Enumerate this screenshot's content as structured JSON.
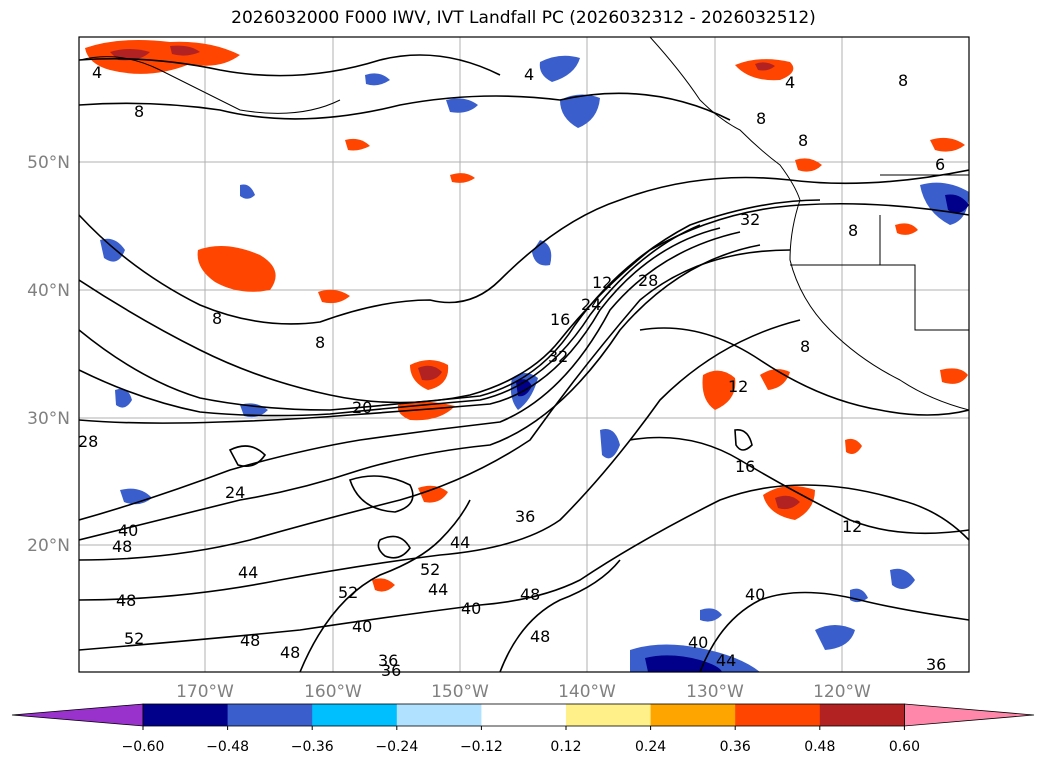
{
  "title": "2026032000 F000 IWV, IVT Landfall PC (2026032312 - 2026032512)",
  "lat_ticks": [
    "50°N",
    "40°N",
    "30°N",
    "20°N"
  ],
  "lon_ticks": [
    "170°W",
    "160°W",
    "150°W",
    "140°W",
    "130°W",
    "120°W"
  ],
  "colorbar": {
    "colors": [
      "#9932cc",
      "#00008b",
      "#3a5fcd",
      "#00bfff",
      "#b0e2ff",
      "#ffffff",
      "#fff08a",
      "#ffa500",
      "#ff4500",
      "#b22222",
      "#ff88aa"
    ],
    "labels": [
      "−0.60",
      "−0.48",
      "−0.36",
      "−0.24",
      "−0.12",
      "0.12",
      "0.24",
      "0.36",
      "0.48",
      "0.60"
    ]
  },
  "contour_labels": [
    {
      "id": "c4a",
      "text": "4"
    },
    {
      "id": "c4b",
      "text": "4"
    },
    {
      "id": "c4c",
      "text": "4"
    },
    {
      "id": "c8a",
      "text": "8"
    },
    {
      "id": "c8b",
      "text": "8"
    },
    {
      "id": "c8c",
      "text": "8"
    },
    {
      "id": "c8d",
      "text": "8"
    },
    {
      "id": "c8e",
      "text": "8"
    },
    {
      "id": "c8f",
      "text": "8"
    },
    {
      "id": "c8g",
      "text": "8"
    },
    {
      "id": "c8h",
      "text": "8"
    },
    {
      "id": "c6",
      "text": "6"
    },
    {
      "id": "c32a",
      "text": "32"
    },
    {
      "id": "c12a",
      "text": "12"
    },
    {
      "id": "c28a",
      "text": "28"
    },
    {
      "id": "c24a",
      "text": "24"
    },
    {
      "id": "c16a",
      "text": "16"
    },
    {
      "id": "c32b",
      "text": "32"
    },
    {
      "id": "c20a",
      "text": "20"
    },
    {
      "id": "c12b",
      "text": "12"
    },
    {
      "id": "c16b",
      "text": "16"
    },
    {
      "id": "c12c",
      "text": "12"
    },
    {
      "id": "c28b",
      "text": "28"
    },
    {
      "id": "c24b",
      "text": "24"
    },
    {
      "id": "c40a",
      "text": "40"
    },
    {
      "id": "c48a",
      "text": "48"
    },
    {
      "id": "c44a",
      "text": "44"
    },
    {
      "id": "c48b",
      "text": "48"
    },
    {
      "id": "c52a",
      "text": "52"
    },
    {
      "id": "c48c",
      "text": "48"
    },
    {
      "id": "c48d",
      "text": "48"
    },
    {
      "id": "c36a",
      "text": "36"
    },
    {
      "id": "c44b",
      "text": "44"
    },
    {
      "id": "c52b",
      "text": "52"
    },
    {
      "id": "c44c",
      "text": "44"
    },
    {
      "id": "c40b",
      "text": "40"
    },
    {
      "id": "c48e",
      "text": "48"
    },
    {
      "id": "c52c",
      "text": "52"
    },
    {
      "id": "c40c",
      "text": "40"
    },
    {
      "id": "c36b",
      "text": "36"
    },
    {
      "id": "c36c",
      "text": "36"
    },
    {
      "id": "c48f",
      "text": "48"
    },
    {
      "id": "c40d",
      "text": "40"
    },
    {
      "id": "c40e",
      "text": "40"
    },
    {
      "id": "c44d",
      "text": "44"
    },
    {
      "id": "c36d",
      "text": "36"
    }
  ]
}
